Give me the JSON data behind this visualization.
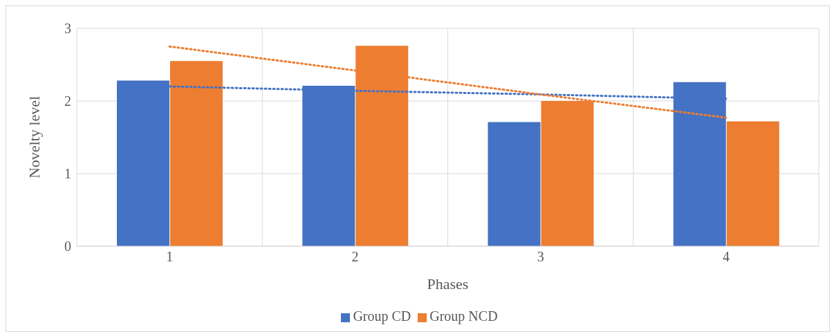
{
  "chart_data": {
    "type": "bar",
    "xlabel": "Phases",
    "ylabel": "Novelty level",
    "categories": [
      "1",
      "2",
      "3",
      "4"
    ],
    "series": [
      {
        "name": "Group CD",
        "color": "#4472c4",
        "values": [
          2.28,
          2.21,
          1.71,
          2.26
        ]
      },
      {
        "name": "Group NCD",
        "color": "#ed7d31",
        "values": [
          2.55,
          2.76,
          2.0,
          1.72
        ]
      },
      {
        "type": "line",
        "color": "#4472c4",
        "line_style": "dotted",
        "marker": "none",
        "values": [
          2.2,
          2.14,
          2.09,
          2.03
        ]
      },
      {
        "type": "line",
        "color": "#ed7d31",
        "line_style": "dotted",
        "marker": "none",
        "values": [
          2.75,
          2.42,
          2.09,
          1.77
        ]
      }
    ],
    "ylim": [
      0,
      3
    ],
    "yticks": [
      0,
      1,
      2,
      3
    ],
    "grid": true,
    "legend": "bottom"
  }
}
